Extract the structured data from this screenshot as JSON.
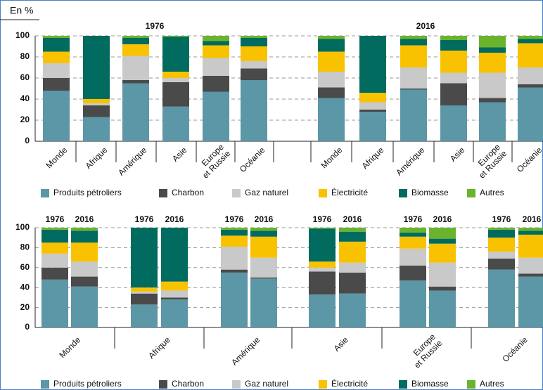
{
  "chart_data": {
    "type": "bar",
    "stacked": true,
    "y_label": "En %",
    "groups": [
      "1976",
      "2016"
    ],
    "categories": [
      "Monde",
      "Afrique",
      "Amérique",
      "Asie",
      "Europe et Russie",
      "Océanie"
    ],
    "series": [
      {
        "name": "Produits pétroliers",
        "color": "#5b97a6",
        "values": [
          [
            48,
            23,
            55,
            33,
            47,
            58
          ],
          [
            41,
            28,
            49,
            34,
            37,
            51
          ]
        ]
      },
      {
        "name": "Charbon",
        "color": "#4a4a4a",
        "values": [
          [
            12,
            11,
            3,
            23,
            15,
            11
          ],
          [
            10,
            2,
            1,
            21,
            4,
            3
          ]
        ]
      },
      {
        "name": "Gaz naturel",
        "color": "#c9c9c9",
        "values": [
          [
            14,
            2,
            23,
            4,
            17,
            7
          ],
          [
            15,
            7,
            20,
            10,
            24,
            16
          ]
        ]
      },
      {
        "name": "Électricité",
        "color": "#f9c200",
        "values": [
          [
            11,
            4,
            11,
            6,
            12,
            14
          ],
          [
            19,
            9,
            21,
            21,
            19,
            23
          ]
        ]
      },
      {
        "name": "Biomasse",
        "color": "#006b5e",
        "values": [
          [
            13,
            60,
            6,
            33,
            4,
            8
          ],
          [
            12,
            54,
            6,
            10,
            5,
            4
          ]
        ]
      },
      {
        "name": "Autres",
        "color": "#6ab42d",
        "values": [
          [
            2,
            0,
            2,
            1,
            5,
            2
          ],
          [
            3,
            0,
            3,
            4,
            11,
            3
          ]
        ]
      }
    ],
    "ylim": [
      0,
      100
    ],
    "yticks": [
      0,
      20,
      40,
      60,
      80,
      100
    ],
    "grid": true
  }
}
